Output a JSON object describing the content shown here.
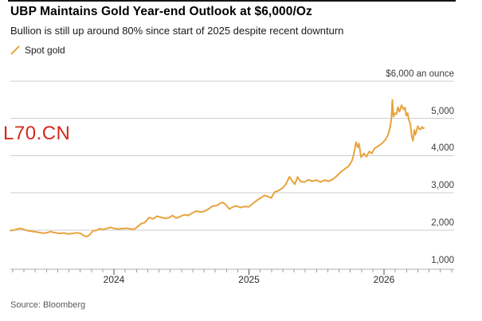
{
  "header": {
    "title": "UBP Maintains Gold Year-end Outlook at $6,000/Oz",
    "subtitle": "Bullion is still up around 80% since start of 2025 despite recent downturn"
  },
  "legend": {
    "label": "Spot gold"
  },
  "watermark": {
    "text": "L70.CN"
  },
  "footer": {
    "source": "Source: Bloomberg"
  },
  "colors": {
    "line": "#E8A33C",
    "watermark": "#D5291D",
    "gridline": "#CECECE",
    "axis": "#ADADAD",
    "tick_major": "#4D4D4D",
    "tick_minor": "#9B9B9B"
  },
  "chart_data": {
    "type": "line",
    "title": "UBP Maintains Gold Year-end Outlook at $6,000/Oz",
    "subtitle": "Bullion is still up around 80% since start of 2025 despite recent downturn",
    "legend_position": "top-left",
    "grid": "horizontal",
    "xlim": [
      2023.23,
      2026.52
    ],
    "ylim": [
      1000,
      6000
    ],
    "x_axis": {
      "start": 2023.233,
      "end": 2026.52,
      "month_tick_first": [
        2023,
        3
      ],
      "month_tick_last": [
        2026,
        6
      ],
      "year_labels": [
        {
          "label": "2024",
          "value": 2024
        },
        {
          "label": "2025",
          "value": 2025
        },
        {
          "label": "2026",
          "value": 2026
        }
      ]
    },
    "y_axis": {
      "min": 1000,
      "max": 6000,
      "top_label": "$6,000 an ounce",
      "gridline_values": [
        6000,
        5000,
        4000,
        3000,
        2000
      ],
      "tick_labels": [
        {
          "label": "5,000",
          "value": 5000
        },
        {
          "label": "4,000",
          "value": 4000
        },
        {
          "label": "3,000",
          "value": 3000
        },
        {
          "label": "2,000",
          "value": 2000
        },
        {
          "label": "1,000",
          "value": 1000
        }
      ]
    },
    "series": [
      {
        "name": "Spot gold",
        "color": "#E8A33C",
        "points": [
          [
            2023.233,
            1985
          ],
          [
            2023.26,
            2000
          ],
          [
            2023.285,
            2025
          ],
          [
            2023.31,
            2042
          ],
          [
            2023.335,
            2012
          ],
          [
            2023.36,
            1985
          ],
          [
            2023.4,
            1962
          ],
          [
            2023.44,
            1940
          ],
          [
            2023.47,
            1916
          ],
          [
            2023.5,
            1926
          ],
          [
            2023.53,
            1958
          ],
          [
            2023.56,
            1932
          ],
          [
            2023.6,
            1908
          ],
          [
            2023.63,
            1921
          ],
          [
            2023.66,
            1892
          ],
          [
            2023.7,
            1913
          ],
          [
            2023.73,
            1928
          ],
          [
            2023.755,
            1903
          ],
          [
            2023.78,
            1843
          ],
          [
            2023.8,
            1824
          ],
          [
            2023.82,
            1872
          ],
          [
            2023.845,
            1980
          ],
          [
            2023.87,
            1988
          ],
          [
            2023.895,
            2038
          ],
          [
            2023.92,
            2012
          ],
          [
            2023.95,
            2046
          ],
          [
            2023.975,
            2071
          ],
          [
            2024.0,
            2044
          ],
          [
            2024.03,
            2028
          ],
          [
            2024.06,
            2036
          ],
          [
            2024.09,
            2049
          ],
          [
            2024.12,
            2031
          ],
          [
            2024.15,
            2021
          ],
          [
            2024.175,
            2088
          ],
          [
            2024.2,
            2166
          ],
          [
            2024.23,
            2205
          ],
          [
            2024.26,
            2336
          ],
          [
            2024.29,
            2302
          ],
          [
            2024.32,
            2372
          ],
          [
            2024.35,
            2341
          ],
          [
            2024.38,
            2312
          ],
          [
            2024.41,
            2336
          ],
          [
            2024.435,
            2391
          ],
          [
            2024.46,
            2322
          ],
          [
            2024.49,
            2362
          ],
          [
            2024.52,
            2412
          ],
          [
            2024.55,
            2392
          ],
          [
            2024.58,
            2456
          ],
          [
            2024.61,
            2512
          ],
          [
            2024.64,
            2482
          ],
          [
            2024.67,
            2506
          ],
          [
            2024.7,
            2566
          ],
          [
            2024.73,
            2642
          ],
          [
            2024.76,
            2656
          ],
          [
            2024.785,
            2716
          ],
          [
            2024.805,
            2742
          ],
          [
            2024.825,
            2692
          ],
          [
            2024.855,
            2566
          ],
          [
            2024.88,
            2622
          ],
          [
            2024.905,
            2652
          ],
          [
            2024.935,
            2606
          ],
          [
            2024.97,
            2632
          ],
          [
            2025.0,
            2626
          ],
          [
            2025.03,
            2716
          ],
          [
            2025.06,
            2802
          ],
          [
            2025.09,
            2872
          ],
          [
            2025.115,
            2932
          ],
          [
            2025.14,
            2902
          ],
          [
            2025.165,
            2862
          ],
          [
            2025.19,
            3022
          ],
          [
            2025.22,
            3062
          ],
          [
            2025.25,
            3132
          ],
          [
            2025.275,
            3242
          ],
          [
            2025.3,
            3432
          ],
          [
            2025.32,
            3322
          ],
          [
            2025.34,
            3232
          ],
          [
            2025.36,
            3426
          ],
          [
            2025.38,
            3312
          ],
          [
            2025.41,
            3286
          ],
          [
            2025.44,
            3352
          ],
          [
            2025.47,
            3312
          ],
          [
            2025.5,
            3342
          ],
          [
            2025.53,
            3292
          ],
          [
            2025.56,
            3342
          ],
          [
            2025.59,
            3312
          ],
          [
            2025.62,
            3362
          ],
          [
            2025.65,
            3452
          ],
          [
            2025.68,
            3562
          ],
          [
            2025.71,
            3642
          ],
          [
            2025.74,
            3722
          ],
          [
            2025.765,
            3882
          ],
          [
            2025.78,
            4102
          ],
          [
            2025.793,
            4366
          ],
          [
            2025.805,
            4222
          ],
          [
            2025.815,
            4324
          ],
          [
            2025.83,
            3956
          ],
          [
            2025.85,
            4062
          ],
          [
            2025.87,
            3972
          ],
          [
            2025.89,
            4112
          ],
          [
            2025.91,
            4062
          ],
          [
            2025.93,
            4192
          ],
          [
            2025.96,
            4262
          ],
          [
            2025.985,
            4332
          ],
          [
            2026.01,
            4422
          ],
          [
            2026.03,
            4562
          ],
          [
            2026.045,
            4752
          ],
          [
            2026.055,
            5002
          ],
          [
            2026.062,
            5496
          ],
          [
            2026.07,
            5052
          ],
          [
            2026.082,
            5142
          ],
          [
            2026.094,
            5122
          ],
          [
            2026.102,
            5302
          ],
          [
            2026.115,
            5182
          ],
          [
            2026.13,
            5356
          ],
          [
            2026.145,
            5242
          ],
          [
            2026.155,
            5292
          ],
          [
            2026.165,
            5072
          ],
          [
            2026.175,
            5142
          ],
          [
            2026.185,
            4942
          ],
          [
            2026.195,
            4852
          ],
          [
            2026.205,
            4532
          ],
          [
            2026.215,
            4396
          ],
          [
            2026.225,
            4692
          ],
          [
            2026.232,
            4562
          ],
          [
            2026.24,
            4652
          ],
          [
            2026.25,
            4792
          ],
          [
            2026.26,
            4722
          ],
          [
            2026.27,
            4702
          ],
          [
            2026.28,
            4772
          ],
          [
            2026.29,
            4732
          ],
          [
            2026.295,
            4746
          ]
        ]
      }
    ]
  }
}
